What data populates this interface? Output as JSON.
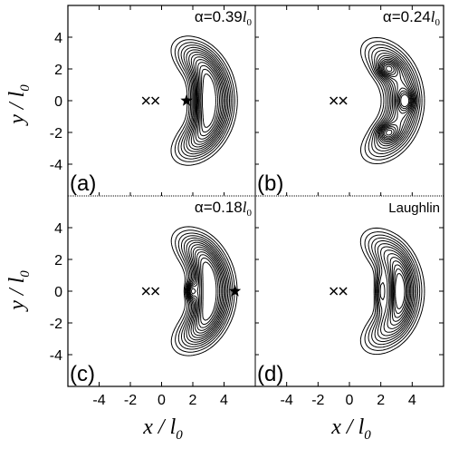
{
  "chart_data": {
    "type": "contour",
    "xlabel": {
      "main": "x / l",
      "sub": "0"
    },
    "ylabel": {
      "main": "y / l",
      "sub": "0"
    },
    "xlim": [
      -6,
      6
    ],
    "ylim": [
      -6,
      6
    ],
    "xticks": [
      -4,
      -2,
      0,
      2,
      4
    ],
    "yticks": [
      -4,
      -2,
      0,
      2,
      4
    ],
    "panels": [
      {
        "id": "a",
        "label": "(a)",
        "annotation": {
          "prefix": "α=0.39",
          "italic": "l",
          "sub": "0"
        },
        "markers": {
          "crosses_x": [
            -1.0,
            -0.4
          ],
          "crosses_y": 0,
          "star": [
            1.6,
            0
          ]
        },
        "peaks": [
          [
            2.6,
            0,
            0.7,
            1.6
          ]
        ]
      },
      {
        "id": "b",
        "label": "(b)",
        "annotation": {
          "prefix": "α=0.24",
          "italic": "l",
          "sub": "0"
        },
        "markers": {
          "crosses_x": [
            -1.0,
            -0.4
          ],
          "crosses_y": 0
        },
        "peaks": [
          [
            2.4,
            2.0,
            0.6,
            0.5
          ],
          [
            3.6,
            0,
            0.5,
            0.6
          ],
          [
            2.4,
            -2.0,
            0.6,
            0.5
          ]
        ]
      },
      {
        "id": "c",
        "label": "(c)",
        "annotation": {
          "prefix": "α=0.18",
          "italic": "l",
          "sub": "0"
        },
        "markers": {
          "crosses_x": [
            -1.0,
            -0.4
          ],
          "crosses_y": 0,
          "star": [
            4.7,
            0
          ]
        },
        "peaks": [
          [
            2.6,
            0,
            0.8,
            1.9
          ],
          [
            1.9,
            0,
            0.3,
            0.5
          ]
        ]
      },
      {
        "id": "d",
        "label": "(d)",
        "annotation": {
          "text": "Laughlin"
        },
        "markers": {
          "crosses_x": [
            -1.0,
            -0.4
          ],
          "crosses_y": 0
        },
        "peaks": [
          [
            2.0,
            0,
            0.35,
            1.3
          ],
          [
            3.1,
            0,
            0.6,
            1.6
          ]
        ]
      }
    ],
    "contour_levels": 14,
    "grid": false,
    "legend": "none"
  }
}
